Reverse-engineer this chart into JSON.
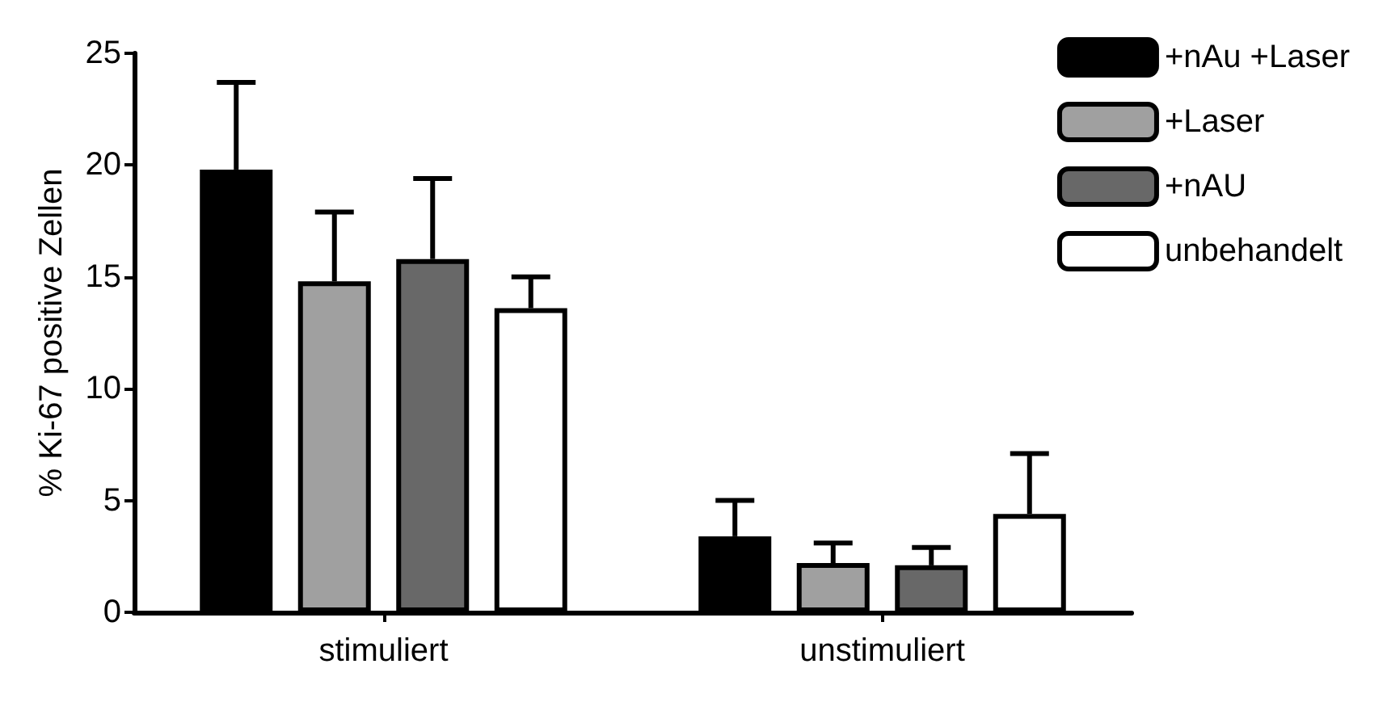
{
  "chart_data": {
    "type": "bar",
    "ylabel": "% Ki-67 positive Zellen",
    "categories": [
      "stimuliert",
      "unstimuliert"
    ],
    "series": [
      {
        "name": "+nAu +Laser",
        "color": "#000000",
        "values": [
          19.8,
          3.4
        ],
        "errors": [
          [
            19.8,
            23.7
          ],
          [
            3.4,
            5.0
          ]
        ]
      },
      {
        "name": "+Laser",
        "color": "#a0a0a0",
        "values": [
          14.8,
          2.2
        ],
        "errors": [
          [
            14.8,
            17.9
          ],
          [
            2.2,
            3.1
          ]
        ]
      },
      {
        "name": "+nAU",
        "color": "#686868",
        "values": [
          15.8,
          2.1
        ],
        "errors": [
          [
            15.8,
            19.4
          ],
          [
            2.1,
            2.9
          ]
        ]
      },
      {
        "name": "unbehandelt",
        "color": "#ffffff",
        "values": [
          13.6,
          4.4
        ],
        "errors": [
          [
            13.6,
            15.0
          ],
          [
            4.4,
            7.1
          ]
        ]
      }
    ],
    "ylim": [
      0,
      25
    ],
    "yticks": [
      0,
      5,
      10,
      15,
      20,
      25
    ],
    "grid": false,
    "legend": "top right"
  }
}
